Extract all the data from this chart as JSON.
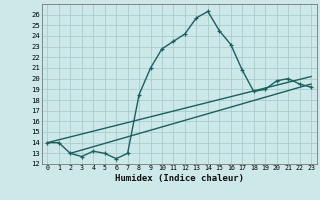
{
  "xlabel": "Humidex (Indice chaleur)",
  "bg_color": "#cce8e8",
  "grid_color": "#aacccc",
  "line_color": "#1a6060",
  "xlim": [
    -0.5,
    23.5
  ],
  "ylim": [
    12,
    27
  ],
  "yticks": [
    12,
    13,
    14,
    15,
    16,
    17,
    18,
    19,
    20,
    21,
    22,
    23,
    24,
    25,
    26
  ],
  "xticks": [
    0,
    1,
    2,
    3,
    4,
    5,
    6,
    7,
    8,
    9,
    10,
    11,
    12,
    13,
    14,
    15,
    16,
    17,
    18,
    19,
    20,
    21,
    22,
    23
  ],
  "main_curve_x": [
    0,
    1,
    2,
    3,
    4,
    5,
    6,
    7,
    8,
    9,
    10,
    11,
    12,
    13,
    14,
    15,
    16,
    17,
    18,
    19,
    20,
    21,
    22,
    23
  ],
  "main_curve_y": [
    14,
    14,
    13,
    12.7,
    13.2,
    13,
    12.5,
    13,
    18.5,
    21,
    22.8,
    23.5,
    24.2,
    25.7,
    26.3,
    24.5,
    23.2,
    20.8,
    18.8,
    19.0,
    19.8,
    20.0,
    19.5,
    19.2
  ],
  "line2_x": [
    0,
    23
  ],
  "line2_y": [
    14.0,
    20.2
  ],
  "line3_x": [
    2,
    23
  ],
  "line3_y": [
    13.0,
    19.5
  ],
  "marker_size": 3.5,
  "line_width": 1.0
}
